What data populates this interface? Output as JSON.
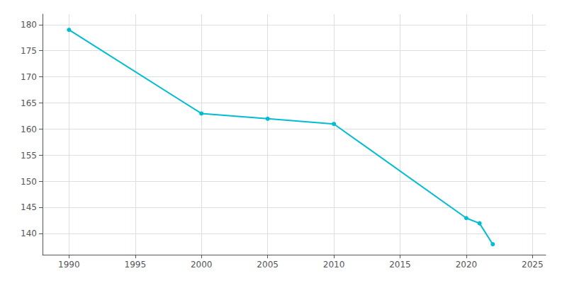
{
  "chart_data": {
    "type": "line",
    "x": [
      1990,
      2000,
      2005,
      2010,
      2020,
      2021,
      2022
    ],
    "values": [
      179,
      163,
      162,
      161,
      143,
      142,
      138
    ],
    "color": "#00BCD4",
    "marker": "circle",
    "xlim": [
      1988,
      2026
    ],
    "xticks": [
      1990,
      1995,
      2000,
      2005,
      2010,
      2015,
      2020,
      2025
    ],
    "ylim": [
      136,
      182
    ],
    "yticks": [
      140,
      145,
      150,
      155,
      160,
      165,
      170,
      175,
      180
    ],
    "grid": true
  }
}
